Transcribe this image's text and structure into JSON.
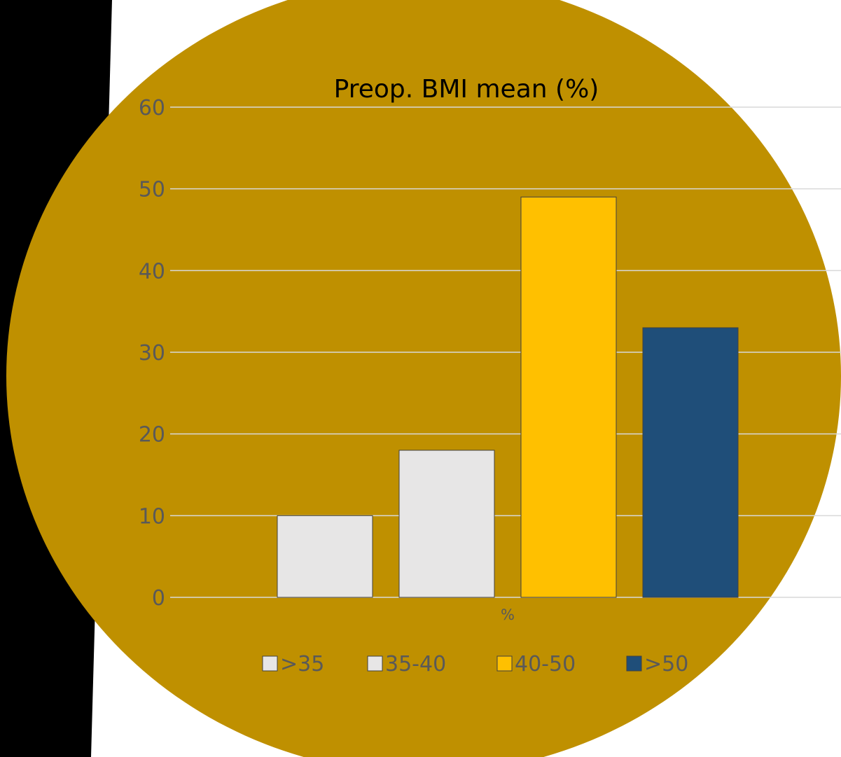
{
  "chart_data": {
    "type": "bar",
    "title": "Preop. BMI mean (%)",
    "categories": [
      "%"
    ],
    "series": [
      {
        "name": ">35",
        "values": [
          10
        ],
        "color": "#e7e6e6"
      },
      {
        "name": "35-40",
        "values": [
          18
        ],
        "color": "#e7e6e6"
      },
      {
        "name": "40-50",
        "values": [
          49
        ],
        "color": "#ffc000"
      },
      {
        "name": ">50",
        "values": [
          33
        ],
        "color": "#1f4e79"
      }
    ],
    "ylim": [
      0,
      60
    ],
    "yticks": [
      0,
      10,
      20,
      30,
      40,
      50,
      60
    ],
    "grid": true,
    "legend_position": "bottom"
  },
  "colors": {
    "page_background": "#ffffff",
    "left_panel": "#000000",
    "circle_background": "#bf9000",
    "gridline": "#d9d9d9",
    "text": "#595959",
    "bar_outline": "#404040"
  }
}
